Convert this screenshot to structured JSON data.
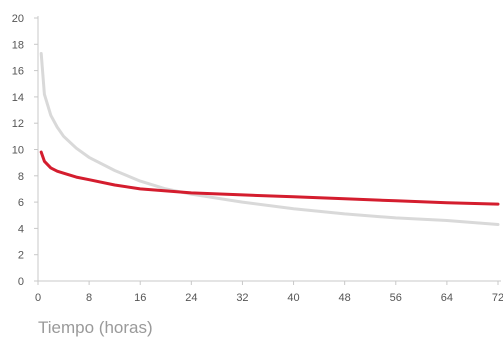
{
  "chart_data": {
    "type": "line",
    "title": "",
    "xlabel": "Tiempo (horas)",
    "ylabel": "",
    "xlim": [
      0,
      72
    ],
    "ylim": [
      0,
      20
    ],
    "xticks": [
      "0",
      "8",
      "16",
      "24",
      "32",
      "40",
      "48",
      "56",
      "64",
      "72"
    ],
    "yticks": [
      "0",
      "2",
      "4",
      "6",
      "8",
      "10",
      "12",
      "14",
      "16",
      "18",
      "20"
    ],
    "grid": false,
    "legend": "none",
    "series": [
      {
        "color": "#d9d9d9",
        "x": [
          0.5,
          1,
          2,
          3,
          4,
          6,
          8,
          12,
          16,
          20,
          24,
          32,
          40,
          48,
          56,
          64,
          72
        ],
        "y": [
          17.3,
          14.2,
          12.6,
          11.7,
          11.0,
          10.1,
          9.4,
          8.4,
          7.6,
          7.0,
          6.6,
          6.0,
          5.5,
          5.1,
          4.8,
          4.6,
          4.3
        ]
      },
      {
        "color": "#d41d2e",
        "x": [
          0.5,
          1,
          2,
          3,
          4,
          6,
          8,
          12,
          16,
          20,
          24,
          32,
          40,
          48,
          56,
          64,
          72
        ],
        "y": [
          9.8,
          9.1,
          8.6,
          8.35,
          8.2,
          7.9,
          7.7,
          7.3,
          7.0,
          6.85,
          6.7,
          6.55,
          6.4,
          6.25,
          6.1,
          5.95,
          5.85
        ]
      }
    ]
  }
}
